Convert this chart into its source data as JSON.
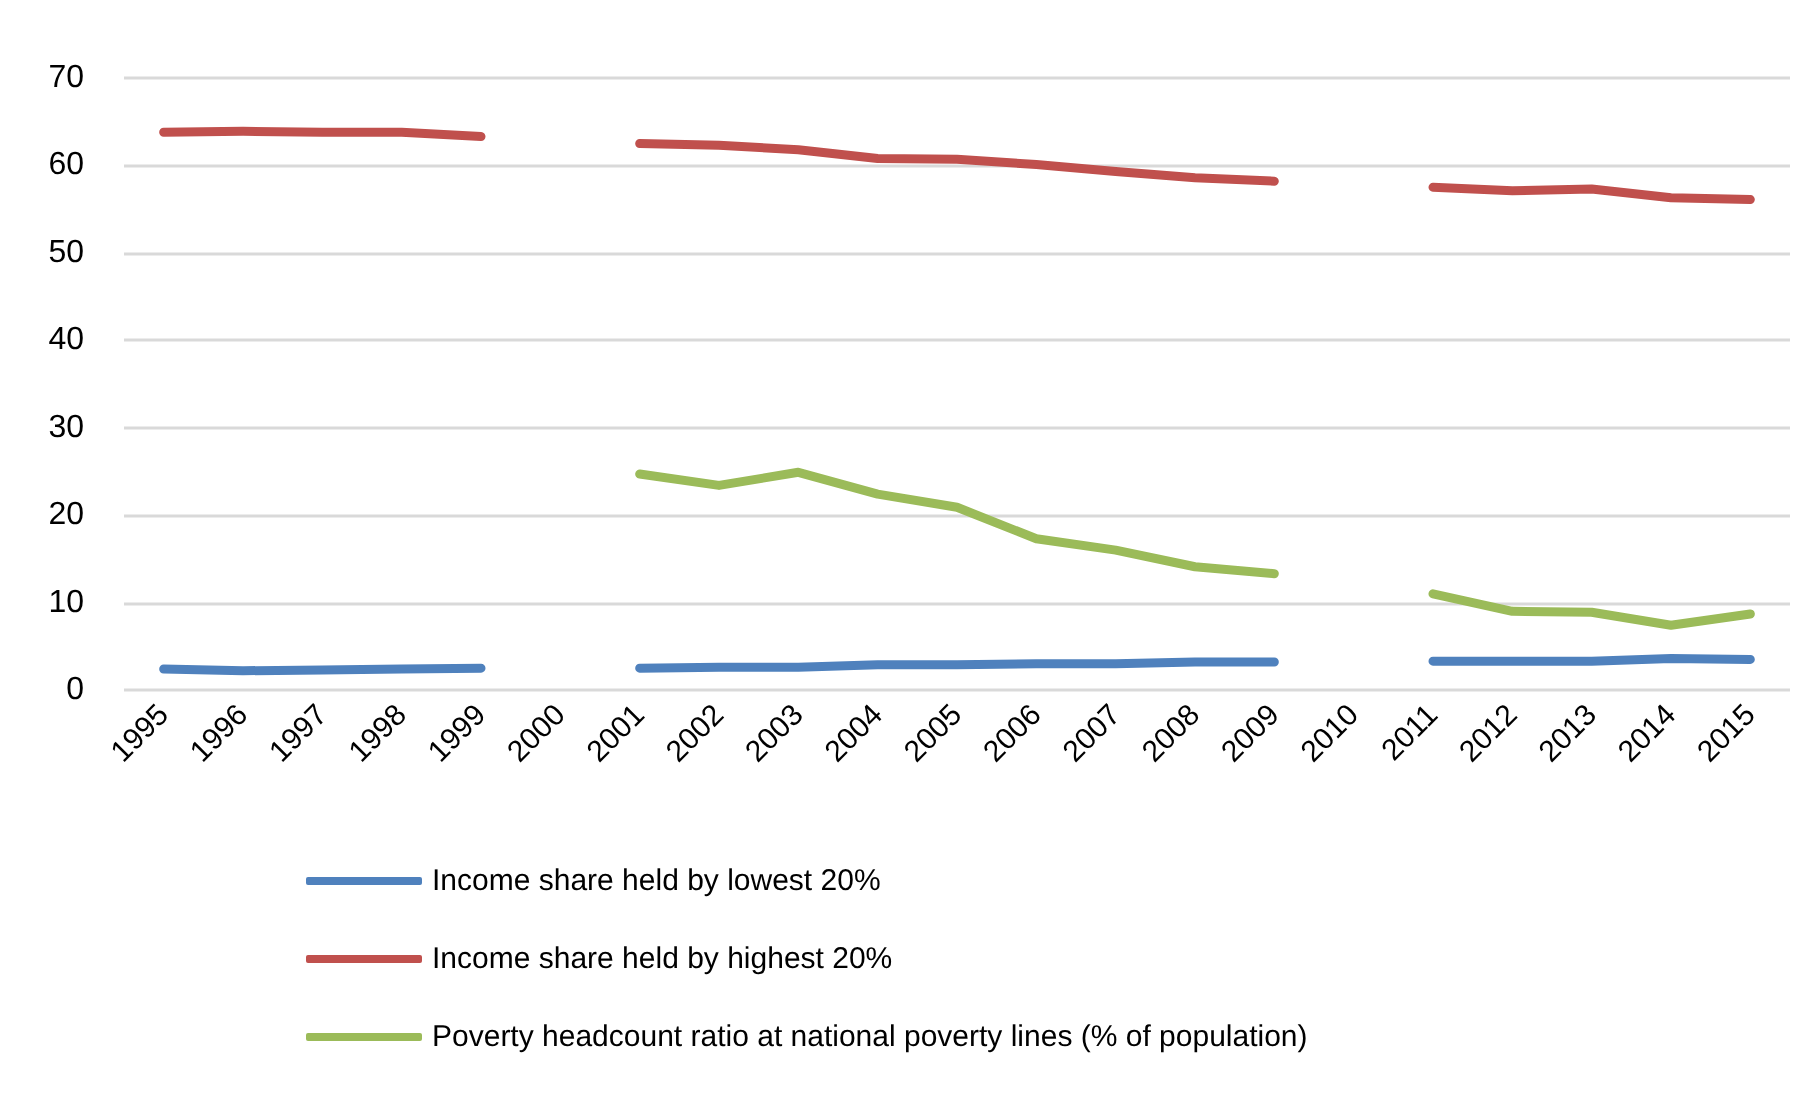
{
  "chart_data": {
    "type": "line",
    "categories": [
      "1995",
      "1996",
      "1997",
      "1998",
      "1999",
      "2000",
      "2001",
      "2002",
      "2003",
      "2004",
      "2005",
      "2006",
      "2007",
      "2008",
      "2009",
      "2010",
      "2011",
      "2012",
      "2013",
      "2014",
      "2015"
    ],
    "series": [
      {
        "name": "Income share held by lowest 20%",
        "color": "#4f81bd",
        "values": [
          2.4,
          2.2,
          2.3,
          2.4,
          2.5,
          null,
          2.5,
          2.6,
          2.6,
          2.9,
          2.9,
          3.0,
          3.0,
          3.2,
          3.2,
          null,
          3.3,
          3.3,
          3.3,
          3.6,
          3.5
        ]
      },
      {
        "name": "Income share held by highest 20%",
        "color": "#c0504d",
        "values": [
          63.8,
          63.9,
          63.8,
          63.8,
          63.3,
          null,
          62.5,
          62.3,
          61.8,
          60.8,
          60.7,
          60.1,
          59.3,
          58.6,
          58.2,
          null,
          57.5,
          57.1,
          57.3,
          56.3,
          56.1
        ]
      },
      {
        "name": "Poverty headcount ratio at national poverty lines (% of population)",
        "color": "#9bbb59",
        "values": [
          null,
          null,
          null,
          null,
          null,
          null,
          24.7,
          23.4,
          24.9,
          22.4,
          20.9,
          17.3,
          16.0,
          14.1,
          13.3,
          null,
          11.0,
          9.0,
          8.9,
          7.4,
          8.7
        ]
      }
    ],
    "ylim": [
      0,
      70
    ],
    "yticks": [
      0,
      10,
      20,
      30,
      40,
      50,
      60,
      70
    ],
    "grid": "y",
    "legend": "bottom",
    "marker": "none",
    "line_style": "solid"
  }
}
